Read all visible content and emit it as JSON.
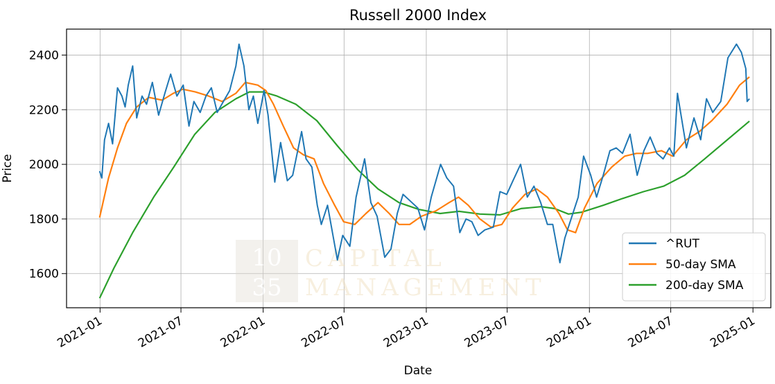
{
  "chart_data": {
    "type": "line",
    "title": "Russell 2000 Index",
    "xlabel": "Date",
    "ylabel": "Price",
    "x_ticks": [
      "2021-01",
      "2021-07",
      "2022-01",
      "2022-07",
      "2023-01",
      "2023-07",
      "2024-01",
      "2024-07",
      "2025-01"
    ],
    "y_ticks": [
      1600,
      1800,
      2000,
      2200,
      2400
    ],
    "xlim": [
      "2020-10-18",
      "2025-02-10"
    ],
    "ylim": [
      1475,
      2495
    ],
    "grid": true,
    "legend_position": "lower-right",
    "series": [
      {
        "name": "^RUT",
        "color": "#1f77b4",
        "points": [
          [
            "2020-12-31",
            1975
          ],
          [
            "2021-01-05",
            1950
          ],
          [
            "2021-01-11",
            2090
          ],
          [
            "2021-01-20",
            2150
          ],
          [
            "2021-01-29",
            2075
          ],
          [
            "2021-02-09",
            2280
          ],
          [
            "2021-02-19",
            2250
          ],
          [
            "2021-02-26",
            2210
          ],
          [
            "2021-03-05",
            2290
          ],
          [
            "2021-03-15",
            2360
          ],
          [
            "2021-03-24",
            2170
          ],
          [
            "2021-04-05",
            2250
          ],
          [
            "2021-04-15",
            2220
          ],
          [
            "2021-04-28",
            2300
          ],
          [
            "2021-05-12",
            2180
          ],
          [
            "2021-05-26",
            2260
          ],
          [
            "2021-06-08",
            2330
          ],
          [
            "2021-06-22",
            2250
          ],
          [
            "2021-07-06",
            2290
          ],
          [
            "2021-07-19",
            2140
          ],
          [
            "2021-07-30",
            2230
          ],
          [
            "2021-08-13",
            2190
          ],
          [
            "2021-08-26",
            2250
          ],
          [
            "2021-09-07",
            2280
          ],
          [
            "2021-09-20",
            2190
          ],
          [
            "2021-10-04",
            2230
          ],
          [
            "2021-10-18",
            2270
          ],
          [
            "2021-11-01",
            2360
          ],
          [
            "2021-11-08",
            2440
          ],
          [
            "2021-11-19",
            2360
          ],
          [
            "2021-11-30",
            2200
          ],
          [
            "2021-12-10",
            2250
          ],
          [
            "2021-12-20",
            2150
          ],
          [
            "2022-01-03",
            2270
          ],
          [
            "2022-01-12",
            2180
          ],
          [
            "2022-01-27",
            1935
          ],
          [
            "2022-02-09",
            2080
          ],
          [
            "2022-02-24",
            1940
          ],
          [
            "2022-03-08",
            1960
          ],
          [
            "2022-03-28",
            2120
          ],
          [
            "2022-04-07",
            2020
          ],
          [
            "2022-04-20",
            1990
          ],
          [
            "2022-05-02",
            1850
          ],
          [
            "2022-05-11",
            1780
          ],
          [
            "2022-05-25",
            1850
          ],
          [
            "2022-06-16",
            1650
          ],
          [
            "2022-06-28",
            1740
          ],
          [
            "2022-07-14",
            1700
          ],
          [
            "2022-07-28",
            1880
          ],
          [
            "2022-08-16",
            2020
          ],
          [
            "2022-08-30",
            1860
          ],
          [
            "2022-09-13",
            1810
          ],
          [
            "2022-09-30",
            1660
          ],
          [
            "2022-10-14",
            1690
          ],
          [
            "2022-10-28",
            1820
          ],
          [
            "2022-11-10",
            1890
          ],
          [
            "2022-11-30",
            1860
          ],
          [
            "2022-12-13",
            1840
          ],
          [
            "2022-12-28",
            1760
          ],
          [
            "2023-01-12",
            1880
          ],
          [
            "2023-02-02",
            2000
          ],
          [
            "2023-02-16",
            1950
          ],
          [
            "2023-03-03",
            1920
          ],
          [
            "2023-03-17",
            1750
          ],
          [
            "2023-03-31",
            1800
          ],
          [
            "2023-04-13",
            1790
          ],
          [
            "2023-04-27",
            1740
          ],
          [
            "2023-05-12",
            1760
          ],
          [
            "2023-05-31",
            1770
          ],
          [
            "2023-06-15",
            1900
          ],
          [
            "2023-06-30",
            1890
          ],
          [
            "2023-07-14",
            1940
          ],
          [
            "2023-07-31",
            2000
          ],
          [
            "2023-08-15",
            1880
          ],
          [
            "2023-08-30",
            1920
          ],
          [
            "2023-09-14",
            1860
          ],
          [
            "2023-09-29",
            1780
          ],
          [
            "2023-10-11",
            1780
          ],
          [
            "2023-10-27",
            1640
          ],
          [
            "2023-11-07",
            1730
          ],
          [
            "2023-11-21",
            1800
          ],
          [
            "2023-12-07",
            1880
          ],
          [
            "2023-12-19",
            2030
          ],
          [
            "2024-01-04",
            1960
          ],
          [
            "2024-01-17",
            1880
          ],
          [
            "2024-02-01",
            1960
          ],
          [
            "2024-02-16",
            2050
          ],
          [
            "2024-03-01",
            2060
          ],
          [
            "2024-03-15",
            2040
          ],
          [
            "2024-04-01",
            2110
          ],
          [
            "2024-04-17",
            1960
          ],
          [
            "2024-05-02",
            2050
          ],
          [
            "2024-05-16",
            2100
          ],
          [
            "2024-05-31",
            2040
          ],
          [
            "2024-06-14",
            2020
          ],
          [
            "2024-06-28",
            2060
          ],
          [
            "2024-07-08",
            2030
          ],
          [
            "2024-07-16",
            2260
          ],
          [
            "2024-08-05",
            2060
          ],
          [
            "2024-08-22",
            2170
          ],
          [
            "2024-09-06",
            2090
          ],
          [
            "2024-09-19",
            2240
          ],
          [
            "2024-10-03",
            2190
          ],
          [
            "2024-10-21",
            2230
          ],
          [
            "2024-11-06",
            2390
          ],
          [
            "2024-11-25",
            2440
          ],
          [
            "2024-12-06",
            2410
          ],
          [
            "2024-12-16",
            2350
          ],
          [
            "2024-12-19",
            2230
          ],
          [
            "2024-12-24",
            2240
          ]
        ]
      },
      {
        "name": "50-day SMA",
        "color": "#ff7f0e",
        "points": [
          [
            "2020-12-31",
            1805
          ],
          [
            "2021-01-20",
            1950
          ],
          [
            "2021-02-09",
            2060
          ],
          [
            "2021-03-01",
            2150
          ],
          [
            "2021-03-24",
            2210
          ],
          [
            "2021-04-20",
            2245
          ],
          [
            "2021-05-20",
            2235
          ],
          [
            "2021-06-14",
            2260
          ],
          [
            "2021-07-05",
            2275
          ],
          [
            "2021-08-02",
            2265
          ],
          [
            "2021-09-01",
            2250
          ],
          [
            "2021-10-01",
            2230
          ],
          [
            "2021-11-01",
            2260
          ],
          [
            "2021-11-22",
            2300
          ],
          [
            "2021-12-20",
            2290
          ],
          [
            "2022-01-07",
            2270
          ],
          [
            "2022-01-24",
            2220
          ],
          [
            "2022-02-15",
            2140
          ],
          [
            "2022-03-10",
            2060
          ],
          [
            "2022-04-01",
            2035
          ],
          [
            "2022-04-25",
            2020
          ],
          [
            "2022-05-16",
            1930
          ],
          [
            "2022-06-10",
            1850
          ],
          [
            "2022-06-30",
            1790
          ],
          [
            "2022-07-25",
            1780
          ],
          [
            "2022-08-19",
            1820
          ],
          [
            "2022-09-15",
            1860
          ],
          [
            "2022-10-10",
            1820
          ],
          [
            "2022-11-01",
            1780
          ],
          [
            "2022-11-25",
            1780
          ],
          [
            "2022-12-21",
            1810
          ],
          [
            "2023-01-23",
            1830
          ],
          [
            "2023-02-21",
            1860
          ],
          [
            "2023-03-14",
            1880
          ],
          [
            "2023-04-05",
            1850
          ],
          [
            "2023-05-01",
            1800
          ],
          [
            "2023-05-26",
            1770
          ],
          [
            "2023-06-19",
            1780
          ],
          [
            "2023-07-13",
            1840
          ],
          [
            "2023-08-10",
            1890
          ],
          [
            "2023-09-05",
            1910
          ],
          [
            "2023-09-29",
            1880
          ],
          [
            "2023-10-25",
            1820
          ],
          [
            "2023-11-13",
            1760
          ],
          [
            "2023-12-01",
            1750
          ],
          [
            "2023-12-21",
            1840
          ],
          [
            "2024-01-18",
            1930
          ],
          [
            "2024-02-20",
            1990
          ],
          [
            "2024-03-20",
            2030
          ],
          [
            "2024-04-15",
            2040
          ],
          [
            "2024-05-10",
            2040
          ],
          [
            "2024-06-10",
            2050
          ],
          [
            "2024-07-05",
            2030
          ],
          [
            "2024-08-05",
            2090
          ],
          [
            "2024-09-03",
            2120
          ],
          [
            "2024-10-01",
            2160
          ],
          [
            "2024-11-04",
            2220
          ],
          [
            "2024-12-02",
            2290
          ],
          [
            "2024-12-24",
            2320
          ]
        ]
      },
      {
        "name": "200-day SMA",
        "color": "#2ca02c",
        "points": [
          [
            "2020-12-31",
            1510
          ],
          [
            "2021-02-01",
            1620
          ],
          [
            "2021-03-15",
            1750
          ],
          [
            "2021-05-01",
            1880
          ],
          [
            "2021-06-15",
            1990
          ],
          [
            "2021-08-01",
            2110
          ],
          [
            "2021-09-15",
            2190
          ],
          [
            "2021-11-01",
            2240
          ],
          [
            "2021-12-01",
            2265
          ],
          [
            "2022-01-01",
            2265
          ],
          [
            "2022-02-01",
            2250
          ],
          [
            "2022-03-15",
            2220
          ],
          [
            "2022-05-01",
            2160
          ],
          [
            "2022-06-15",
            2070
          ],
          [
            "2022-08-01",
            1980
          ],
          [
            "2022-09-15",
            1910
          ],
          [
            "2022-11-01",
            1860
          ],
          [
            "2022-12-15",
            1835
          ],
          [
            "2023-02-01",
            1820
          ],
          [
            "2023-03-15",
            1828
          ],
          [
            "2023-05-01",
            1818
          ],
          [
            "2023-06-15",
            1815
          ],
          [
            "2023-08-01",
            1838
          ],
          [
            "2023-09-15",
            1845
          ],
          [
            "2023-10-15",
            1838
          ],
          [
            "2023-11-15",
            1818
          ],
          [
            "2023-12-15",
            1825
          ],
          [
            "2024-02-01",
            1850
          ],
          [
            "2024-03-15",
            1875
          ],
          [
            "2024-05-01",
            1900
          ],
          [
            "2024-06-15",
            1920
          ],
          [
            "2024-08-01",
            1960
          ],
          [
            "2024-09-15",
            2020
          ],
          [
            "2024-11-01",
            2085
          ],
          [
            "2024-12-24",
            2158
          ]
        ]
      }
    ]
  },
  "watermark": {
    "numeral_top": "10",
    "numeral_bottom": "35",
    "word_line1": "CAPITAL",
    "word_line2": "MANAGEMENT"
  }
}
